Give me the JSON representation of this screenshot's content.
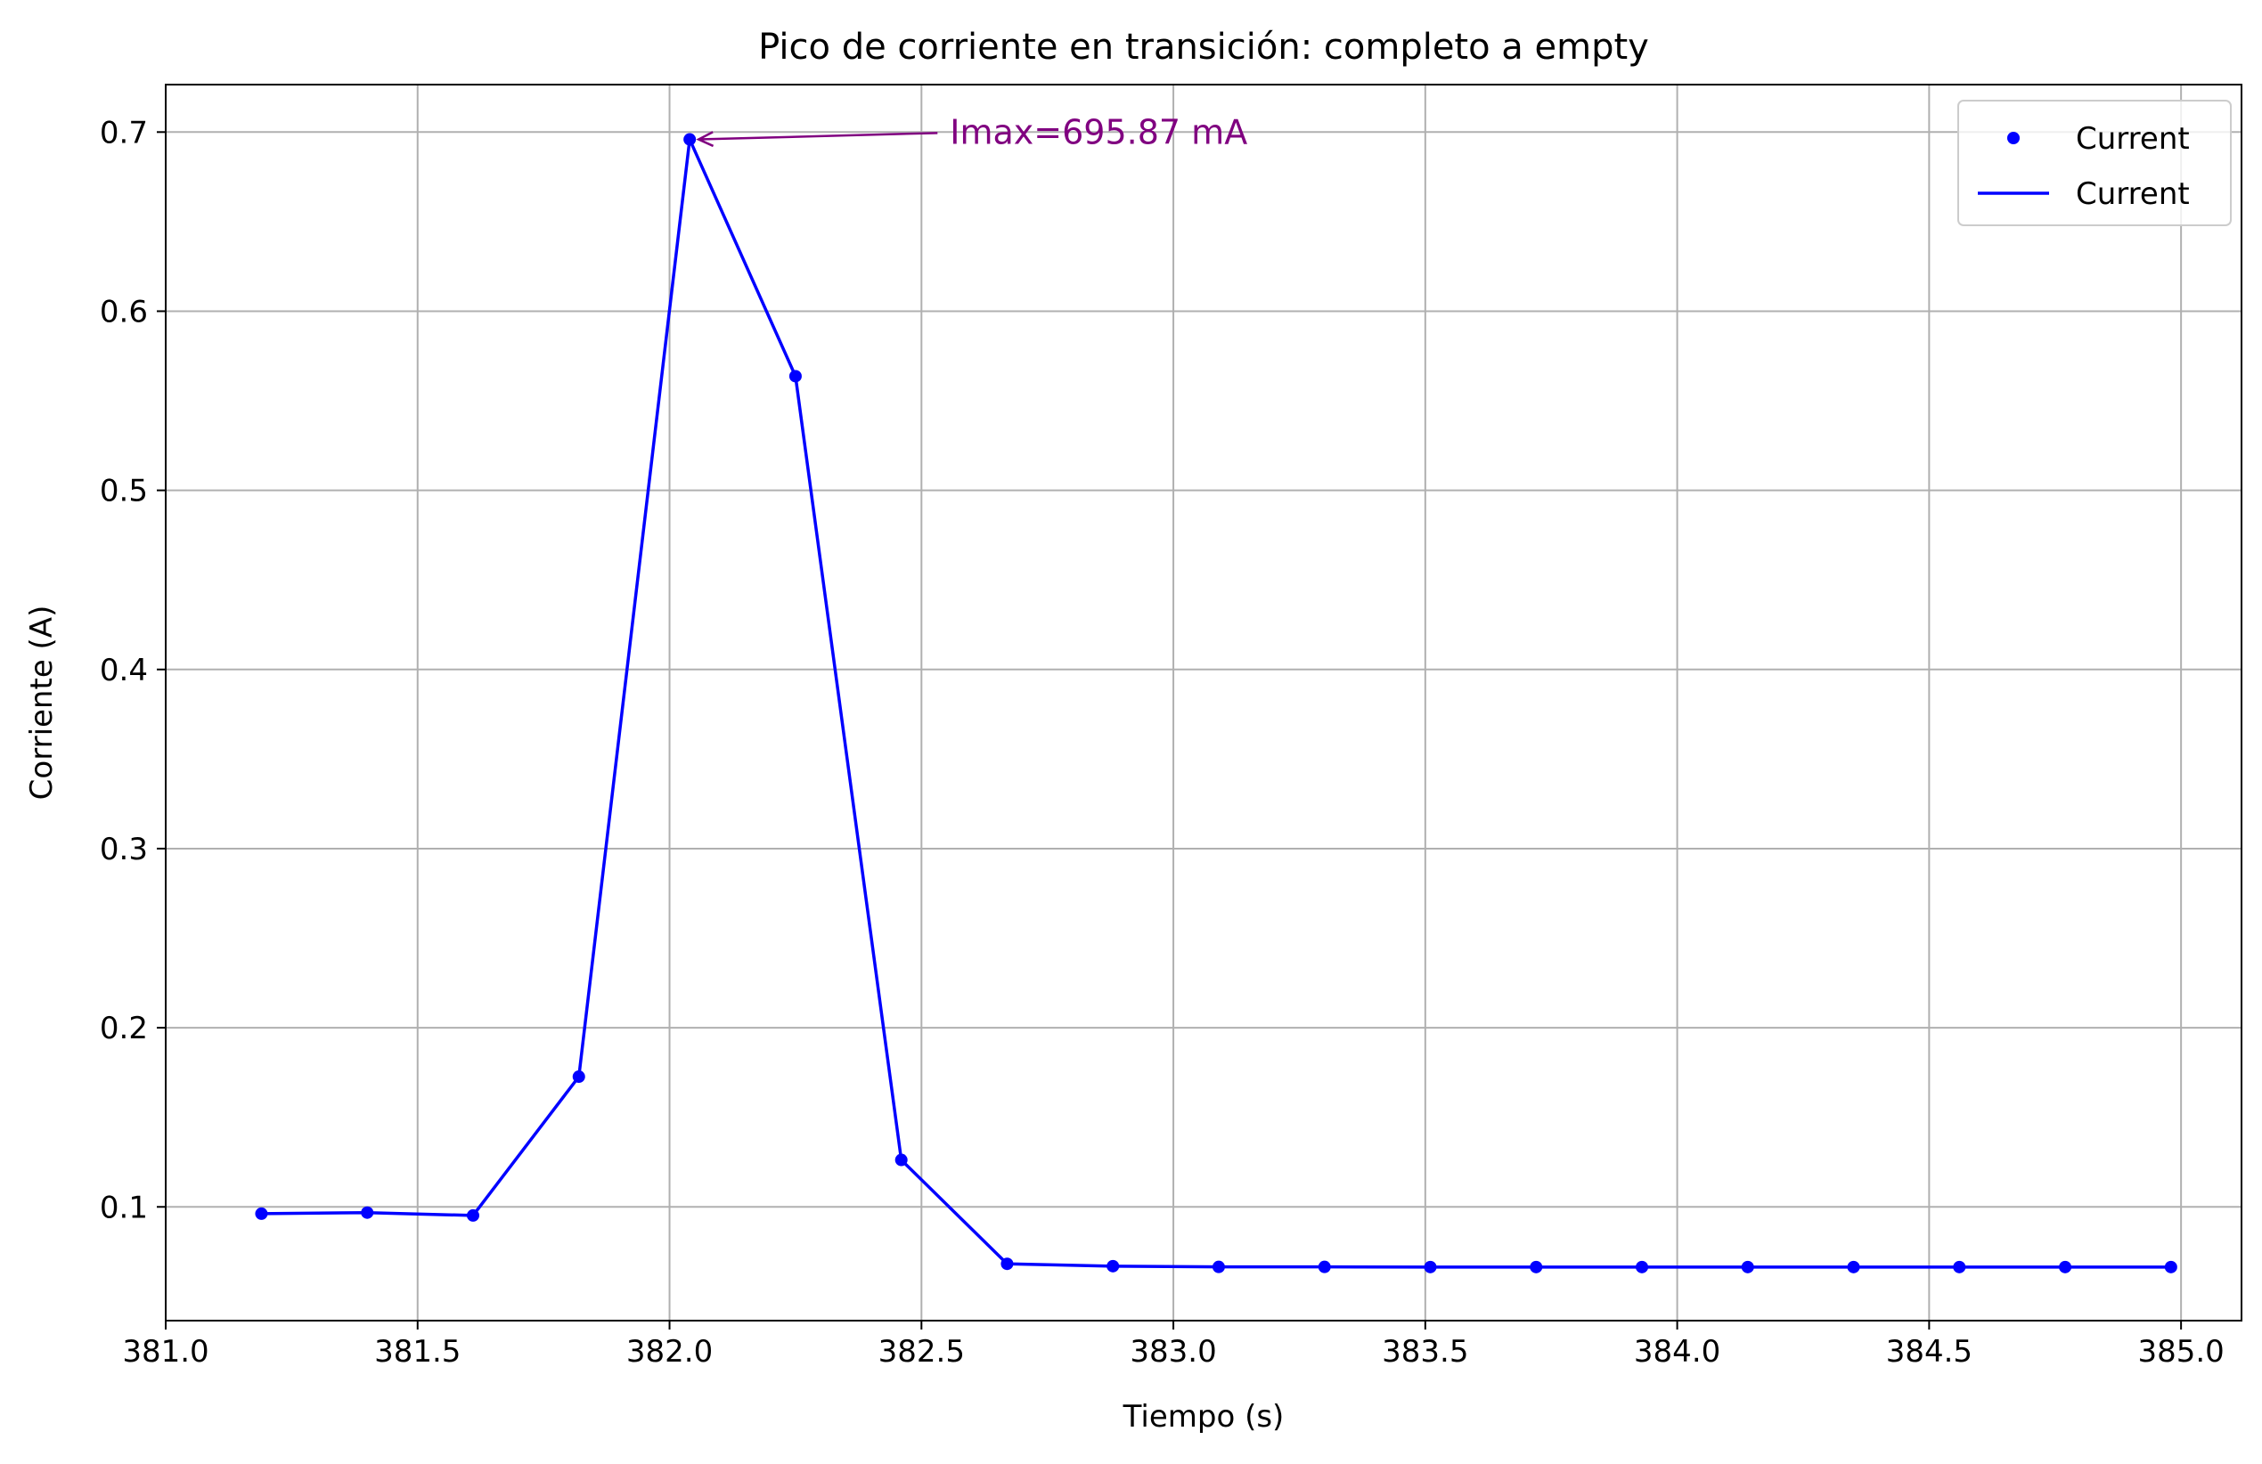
{
  "chart_data": {
    "type": "line",
    "title": "Pico de corriente en transición: completo a empty",
    "xlabel": "Tiempo (s)",
    "ylabel": "Corriente (A)",
    "xlim": [
      381.0,
      385.12
    ],
    "ylim": [
      0.0365,
      0.7265
    ],
    "xticks": [
      381.0,
      381.5,
      382.0,
      382.5,
      383.0,
      383.5,
      384.0,
      384.5,
      385.0
    ],
    "xtick_labels": [
      "381.0",
      "381.5",
      "382.0",
      "382.5",
      "383.0",
      "383.5",
      "384.0",
      "384.5",
      "385.0"
    ],
    "yticks": [
      0.1,
      0.2,
      0.3,
      0.4,
      0.5,
      0.6,
      0.7
    ],
    "ytick_labels": [
      "0.1",
      "0.2",
      "0.3",
      "0.4",
      "0.5",
      "0.6",
      "0.7"
    ],
    "grid": true,
    "legend_position": "top-right",
    "series": [
      {
        "name": "Current",
        "color": "#0000ff",
        "x": [
          381.19,
          381.4,
          381.61,
          381.82,
          382.04,
          382.25,
          382.46,
          382.67,
          382.88,
          383.09,
          383.3,
          383.51,
          383.72,
          383.93,
          384.14,
          384.35,
          384.56,
          384.77,
          384.98
        ],
        "y": [
          0.0962,
          0.0968,
          0.0952,
          0.1727,
          0.6959,
          0.5637,
          0.1262,
          0.0682,
          0.0669,
          0.0665,
          0.0665,
          0.0664,
          0.0664,
          0.0664,
          0.0664,
          0.0664,
          0.0664,
          0.0664,
          0.0664
        ]
      }
    ],
    "legend": [
      {
        "label": "Current",
        "kind": "marker"
      },
      {
        "label": "Current",
        "kind": "line"
      }
    ],
    "annotation": {
      "text": "Imax=695.87 mA",
      "color": "#800080",
      "point_x": 382.04,
      "point_y": 0.6959,
      "text_x": 382.5,
      "text_y": 0.6995
    }
  }
}
